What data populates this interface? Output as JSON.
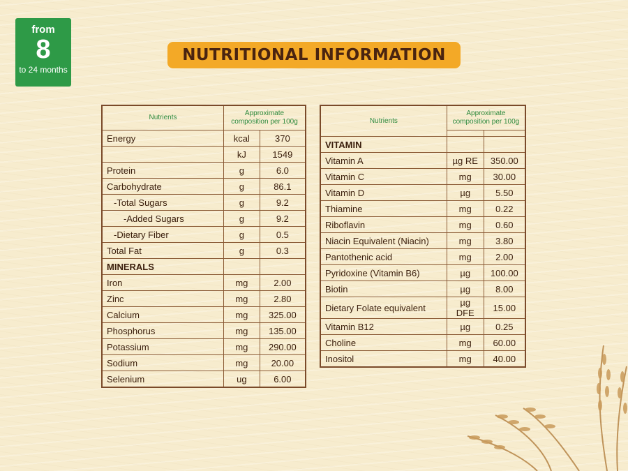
{
  "badge": {
    "from": "from",
    "number": "8",
    "range": "to 24 months"
  },
  "title": "NUTRITIONAL INFORMATION",
  "left_table": {
    "header": {
      "col1": "Nutrients",
      "col2": "Approximate composition per 100g"
    },
    "rows": [
      {
        "name": "Energy",
        "unit": "kcal",
        "value": "370"
      },
      {
        "name": "",
        "unit": "kJ",
        "value": "1549"
      },
      {
        "name": "Protein",
        "unit": "g",
        "value": "6.0"
      },
      {
        "name": "Carbohydrate",
        "unit": "g",
        "value": "86.1"
      },
      {
        "name": "-Total Sugars",
        "unit": "g",
        "value": "9.2"
      },
      {
        "name": "-Added Sugars",
        "unit": "g",
        "value": "9.2"
      },
      {
        "name": "-Dietary Fiber",
        "unit": "g",
        "value": "0.5"
      },
      {
        "name": "Total Fat",
        "unit": "g",
        "value": "0.3"
      },
      {
        "name": "MINERALS",
        "unit": "",
        "value": ""
      },
      {
        "name": "Iron",
        "unit": "mg",
        "value": "2.00"
      },
      {
        "name": "Zinc",
        "unit": "mg",
        "value": "2.80"
      },
      {
        "name": "Calcium",
        "unit": "mg",
        "value": "325.00"
      },
      {
        "name": "Phosphorus",
        "unit": "mg",
        "value": "135.00"
      },
      {
        "name": "Potassium",
        "unit": "mg",
        "value": "290.00"
      },
      {
        "name": "Sodium",
        "unit": "mg",
        "value": "20.00"
      },
      {
        "name": "Selenium",
        "unit": "ug",
        "value": "6.00"
      }
    ]
  },
  "right_table": {
    "header": {
      "col1": "Nutrients",
      "col2": "Approximate composition per 100g"
    },
    "rows": [
      {
        "name": "",
        "unit": "",
        "value": ""
      },
      {
        "name": "VITAMIN",
        "unit": "",
        "value": ""
      },
      {
        "name": "Vitamin A",
        "unit": "µg RE",
        "value": "350.00"
      },
      {
        "name": "Vitamin C",
        "unit": "mg",
        "value": "30.00"
      },
      {
        "name": "Vitamin D",
        "unit": "µg",
        "value": "5.50"
      },
      {
        "name": "Thiamine",
        "unit": "mg",
        "value": "0.22"
      },
      {
        "name": "Riboflavin",
        "unit": "mg",
        "value": "0.60"
      },
      {
        "name": "Niacin Equivalent (Niacin)",
        "unit": "mg",
        "value": "3.80"
      },
      {
        "name": "Pantothenic acid",
        "unit": "mg",
        "value": "2.00"
      },
      {
        "name": "Pyridoxine (Vitamin B6)",
        "unit": "µg",
        "value": "100.00"
      },
      {
        "name": "Biotin",
        "unit": "µg",
        "value": "8.00"
      },
      {
        "name": "Dietary Folate equivalent",
        "unit": "µg DFE",
        "value": "15.00"
      },
      {
        "name": "Vitamin B12",
        "unit": "µg",
        "value": "0.25"
      },
      {
        "name": "Choline",
        "unit": "mg",
        "value": "60.00"
      },
      {
        "name": "Inositol",
        "unit": "mg",
        "value": "40.00"
      }
    ]
  },
  "colors": {
    "badge": "#2e9a47",
    "title_bg": "#f3a927",
    "header_text": "#2e8a3e",
    "border": "#7a4a2a"
  }
}
